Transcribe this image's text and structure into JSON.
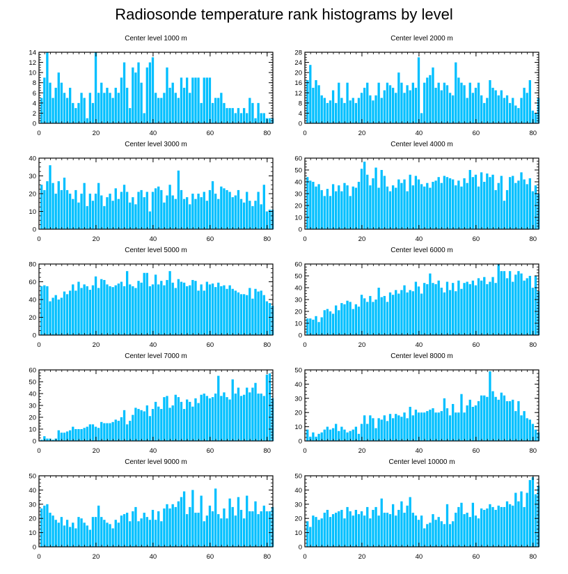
{
  "title": "Radiosonde temperature rank histograms by level",
  "colors": {
    "bar": "#00BFFF",
    "axis": "#000000"
  },
  "chart_data": [
    {
      "type": "bar",
      "title": "Center level 1000 m",
      "xlim": [
        0,
        82
      ],
      "ylim": [
        0,
        14
      ],
      "xticks": [
        0,
        20,
        40,
        60,
        80
      ],
      "yticks": [
        0,
        2,
        4,
        6,
        8,
        10,
        12,
        14
      ],
      "values": [
        5,
        9,
        14,
        8,
        5,
        7,
        10,
        8,
        6,
        5,
        7,
        4,
        3,
        4,
        6,
        5,
        1,
        6,
        4,
        14,
        6,
        8,
        6,
        7,
        6,
        5,
        7,
        6,
        9,
        12,
        7,
        3,
        11,
        10,
        12,
        8,
        2,
        11,
        12,
        13,
        6,
        5,
        5,
        6,
        11,
        7,
        8,
        6,
        5,
        9,
        7,
        9,
        6,
        9,
        9,
        9,
        4,
        9,
        9,
        9,
        4,
        5,
        5,
        6,
        4,
        3,
        3,
        3,
        2,
        3,
        2,
        3,
        2,
        5,
        4,
        1,
        4,
        2,
        2,
        1,
        1,
        1
      ]
    },
    {
      "type": "bar",
      "title": "Center level 2000 m",
      "xlim": [
        0,
        82
      ],
      "ylim": [
        0,
        28
      ],
      "xticks": [
        0,
        20,
        40,
        60,
        80
      ],
      "yticks": [
        0,
        4,
        8,
        12,
        16,
        20,
        24,
        28
      ],
      "values": [
        17,
        23,
        14,
        17,
        15,
        11,
        10,
        8,
        9,
        13,
        8,
        16,
        10,
        8,
        16,
        9,
        10,
        8,
        10,
        12,
        14,
        16,
        11,
        9,
        11,
        16,
        10,
        13,
        16,
        15,
        14,
        12,
        20,
        16,
        12,
        15,
        13,
        16,
        14,
        26,
        4,
        16,
        18,
        19,
        22,
        14,
        16,
        13,
        16,
        15,
        12,
        11,
        24,
        18,
        16,
        15,
        10,
        16,
        12,
        14,
        16,
        11,
        8,
        10,
        17,
        14,
        13,
        11,
        13,
        10,
        11,
        8,
        10,
        7,
        6,
        10,
        14,
        12,
        17,
        5,
        4,
        10
      ]
    },
    {
      "type": "bar",
      "title": "Center level 3000 m",
      "xlim": [
        0,
        82
      ],
      "ylim": [
        0,
        40
      ],
      "xticks": [
        0,
        20,
        40,
        60,
        80
      ],
      "yticks": [
        0,
        10,
        20,
        30,
        40
      ],
      "values": [
        25,
        22,
        27,
        36,
        26,
        20,
        27,
        22,
        29,
        22,
        20,
        17,
        22,
        15,
        20,
        26,
        13,
        20,
        16,
        20,
        26,
        19,
        13,
        18,
        20,
        16,
        23,
        17,
        21,
        25,
        21,
        15,
        18,
        14,
        21,
        22,
        18,
        21,
        10,
        21,
        23,
        24,
        22,
        15,
        19,
        25,
        19,
        17,
        33,
        22,
        17,
        18,
        14,
        20,
        17,
        20,
        18,
        21,
        16,
        22,
        27,
        20,
        17,
        24,
        23,
        22,
        21,
        18,
        19,
        22,
        17,
        15,
        21,
        16,
        13,
        16,
        21,
        14,
        25,
        10,
        11,
        11
      ]
    },
    {
      "type": "bar",
      "title": "Center level 4000 m",
      "xlim": [
        0,
        82
      ],
      "ylim": [
        0,
        60
      ],
      "xticks": [
        0,
        20,
        40,
        60,
        80
      ],
      "yticks": [
        0,
        10,
        20,
        30,
        40,
        50,
        60
      ],
      "values": [
        44,
        41,
        40,
        36,
        38,
        33,
        28,
        34,
        28,
        38,
        32,
        37,
        32,
        39,
        37,
        28,
        36,
        35,
        40,
        51,
        57,
        46,
        37,
        43,
        52,
        35,
        50,
        45,
        36,
        32,
        37,
        35,
        42,
        39,
        42,
        32,
        46,
        37,
        45,
        42,
        38,
        36,
        39,
        35,
        40,
        41,
        44,
        39,
        45,
        44,
        43,
        42,
        37,
        41,
        36,
        43,
        39,
        50,
        44,
        46,
        36,
        48,
        40,
        47,
        44,
        46,
        33,
        39,
        45,
        24,
        33,
        44,
        45,
        39,
        41,
        48,
        42,
        38,
        43,
        32,
        37,
        30
      ]
    },
    {
      "type": "bar",
      "title": "Center level 5000 m",
      "xlim": [
        0,
        82
      ],
      "ylim": [
        0,
        80
      ],
      "xticks": [
        0,
        20,
        40,
        60,
        80
      ],
      "yticks": [
        0,
        20,
        40,
        60,
        80
      ],
      "values": [
        55,
        56,
        55,
        38,
        42,
        45,
        40,
        42,
        49,
        46,
        50,
        57,
        50,
        60,
        53,
        57,
        55,
        51,
        56,
        66,
        53,
        63,
        62,
        57,
        55,
        54,
        56,
        58,
        60,
        55,
        72,
        57,
        55,
        53,
        61,
        59,
        70,
        70,
        55,
        57,
        68,
        57,
        61,
        56,
        62,
        72,
        59,
        53,
        63,
        60,
        59,
        55,
        56,
        62,
        61,
        50,
        57,
        50,
        60,
        57,
        58,
        54,
        59,
        55,
        56,
        52,
        56,
        52,
        50,
        48,
        46,
        46,
        45,
        53,
        41,
        52,
        49,
        50,
        45,
        38,
        36,
        33
      ]
    },
    {
      "type": "bar",
      "title": "Center level 6000 m",
      "xlim": [
        0,
        82
      ],
      "ylim": [
        0,
        60
      ],
      "xticks": [
        0,
        20,
        40,
        60,
        80
      ],
      "yticks": [
        0,
        10,
        20,
        30,
        40,
        50,
        60
      ],
      "values": [
        14,
        14,
        13,
        16,
        11,
        15,
        21,
        22,
        20,
        18,
        25,
        21,
        27,
        26,
        29,
        28,
        22,
        26,
        24,
        34,
        31,
        28,
        33,
        28,
        30,
        40,
        32,
        33,
        28,
        36,
        34,
        38,
        35,
        38,
        42,
        36,
        38,
        37,
        45,
        41,
        35,
        44,
        43,
        52,
        44,
        43,
        46,
        40,
        36,
        45,
        38,
        44,
        37,
        46,
        39,
        44,
        45,
        43,
        46,
        42,
        48,
        46,
        49,
        43,
        45,
        49,
        44,
        60,
        54,
        54,
        48,
        54,
        45,
        51,
        54,
        52,
        46,
        48,
        50,
        40,
        50,
        37
      ]
    },
    {
      "type": "bar",
      "title": "Center level 7000 m",
      "xlim": [
        0,
        82
      ],
      "ylim": [
        0,
        60
      ],
      "xticks": [
        0,
        20,
        40,
        60,
        80
      ],
      "yticks": [
        0,
        10,
        20,
        30,
        40,
        50,
        60
      ],
      "values": [
        1,
        4,
        2,
        2,
        1,
        2,
        9,
        7,
        7,
        8,
        9,
        12,
        10,
        10,
        10,
        11,
        12,
        14,
        14,
        12,
        11,
        16,
        15,
        15,
        15,
        16,
        18,
        17,
        20,
        26,
        14,
        17,
        22,
        28,
        27,
        26,
        25,
        30,
        21,
        27,
        33,
        29,
        27,
        37,
        38,
        28,
        30,
        39,
        37,
        33,
        27,
        35,
        33,
        29,
        36,
        32,
        39,
        40,
        38,
        36,
        37,
        40,
        55,
        38,
        41,
        37,
        35,
        52,
        40,
        45,
        38,
        39,
        45,
        41,
        45,
        49,
        40,
        40,
        38,
        56,
        57,
        36
      ]
    },
    {
      "type": "bar",
      "title": "Center level 8000 m",
      "xlim": [
        0,
        82
      ],
      "ylim": [
        0,
        50
      ],
      "xticks": [
        0,
        20,
        40,
        60,
        80
      ],
      "yticks": [
        0,
        10,
        20,
        30,
        40,
        50
      ],
      "values": [
        8,
        3,
        6,
        3,
        5,
        6,
        8,
        10,
        8,
        9,
        12,
        7,
        10,
        8,
        6,
        7,
        8,
        10,
        5,
        12,
        18,
        12,
        18,
        16,
        9,
        16,
        15,
        18,
        14,
        19,
        16,
        19,
        18,
        17,
        20,
        16,
        24,
        18,
        22,
        20,
        20,
        20,
        21,
        22,
        23,
        20,
        20,
        21,
        30,
        23,
        18,
        26,
        20,
        20,
        33,
        20,
        25,
        29,
        24,
        25,
        28,
        32,
        32,
        31,
        49,
        35,
        31,
        29,
        34,
        32,
        28,
        28,
        29,
        21,
        28,
        18,
        21,
        16,
        15,
        12,
        8,
        6
      ]
    },
    {
      "type": "bar",
      "title": "Center level 9000 m",
      "xlim": [
        0,
        82
      ],
      "ylim": [
        0,
        50
      ],
      "xticks": [
        0,
        20,
        40,
        60,
        80
      ],
      "yticks": [
        0,
        10,
        20,
        30,
        40,
        50
      ],
      "values": [
        27,
        29,
        30,
        24,
        22,
        19,
        17,
        21,
        15,
        19,
        14,
        17,
        13,
        21,
        20,
        17,
        15,
        12,
        21,
        21,
        29,
        21,
        19,
        17,
        16,
        13,
        19,
        17,
        22,
        23,
        24,
        18,
        25,
        28,
        18,
        20,
        24,
        21,
        19,
        26,
        19,
        25,
        18,
        27,
        30,
        27,
        30,
        28,
        32,
        35,
        39,
        23,
        28,
        40,
        24,
        24,
        36,
        18,
        22,
        29,
        25,
        41,
        23,
        20,
        27,
        20,
        34,
        28,
        22,
        35,
        26,
        20,
        36,
        25,
        25,
        32,
        23,
        25,
        29,
        25,
        25,
        28
      ]
    },
    {
      "type": "bar",
      "title": "Center level 10000 m",
      "xlim": [
        0,
        82
      ],
      "ylim": [
        0,
        50
      ],
      "xticks": [
        0,
        20,
        40,
        60,
        80
      ],
      "yticks": [
        0,
        10,
        20,
        30,
        40,
        50
      ],
      "values": [
        18,
        14,
        22,
        21,
        19,
        20,
        24,
        26,
        21,
        23,
        24,
        25,
        26,
        20,
        28,
        25,
        22,
        26,
        23,
        25,
        22,
        28,
        20,
        26,
        28,
        22,
        34,
        24,
        24,
        23,
        30,
        22,
        26,
        32,
        24,
        29,
        35,
        24,
        22,
        19,
        22,
        13,
        16,
        17,
        23,
        19,
        21,
        18,
        16,
        30,
        16,
        18,
        24,
        28,
        31,
        23,
        24,
        21,
        31,
        22,
        20,
        27,
        26,
        27,
        30,
        28,
        26,
        29,
        28,
        28,
        32,
        30,
        29,
        38,
        32,
        39,
        28,
        38,
        47,
        49,
        37,
        43
      ]
    }
  ]
}
